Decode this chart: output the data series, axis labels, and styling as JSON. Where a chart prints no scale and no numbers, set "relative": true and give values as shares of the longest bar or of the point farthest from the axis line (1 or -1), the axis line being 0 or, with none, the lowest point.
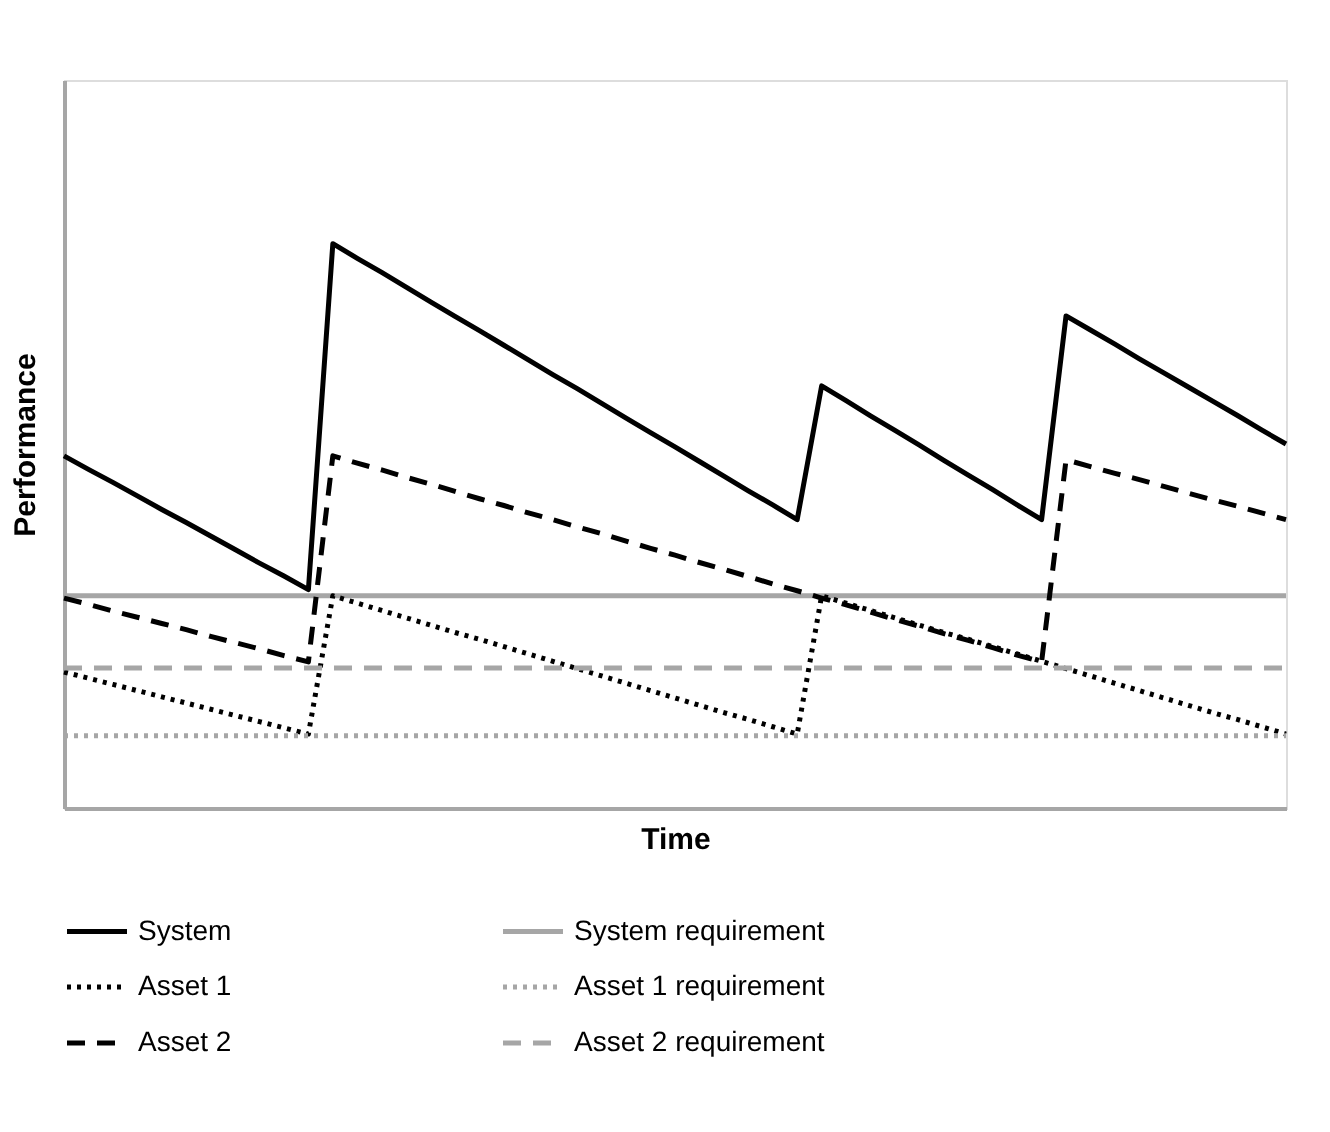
{
  "chart_data": {
    "type": "line",
    "relative": true,
    "xlabel": "Time",
    "ylabel": "Performance",
    "legend": "bottom",
    "tick_labels": false,
    "categories": [
      null,
      null,
      null,
      null,
      null,
      null,
      null,
      null,
      null,
      null,
      null,
      null,
      null,
      null,
      null,
      null,
      null,
      null,
      null,
      null,
      null,
      null,
      null,
      null,
      null,
      null,
      null,
      null,
      null,
      null,
      null,
      null,
      null,
      null,
      null,
      null,
      null,
      null,
      null,
      null,
      null,
      null,
      null,
      null,
      null,
      null,
      null,
      null,
      null,
      null,
      null
    ],
    "series": [
      {
        "name": "System",
        "color": "#000000",
        "line_style": "solid",
        "values": [
          0.624,
          0.6,
          0.577,
          0.553,
          0.529,
          0.506,
          0.482,
          0.458,
          0.434,
          0.411,
          0.387,
          1.0,
          0.974,
          0.949,
          0.923,
          0.897,
          0.871,
          0.846,
          0.82,
          0.794,
          0.768,
          0.743,
          0.717,
          0.691,
          0.665,
          0.64,
          0.614,
          0.588,
          0.562,
          0.537,
          0.511,
          0.748,
          0.722,
          0.695,
          0.669,
          0.643,
          0.616,
          0.59,
          0.564,
          0.537,
          0.511,
          0.872,
          0.847,
          0.822,
          0.796,
          0.771,
          0.746,
          0.721,
          0.696,
          0.67,
          0.645
        ]
      },
      {
        "name": "System requirement",
        "color": "#a6a6a6",
        "line_style": "solid",
        "values": [
          0.376,
          0.376,
          0.376,
          0.376,
          0.376,
          0.376,
          0.376,
          0.376,
          0.376,
          0.376,
          0.376,
          0.376,
          0.376,
          0.376,
          0.376,
          0.376,
          0.376,
          0.376,
          0.376,
          0.376,
          0.376,
          0.376,
          0.376,
          0.376,
          0.376,
          0.376,
          0.376,
          0.376,
          0.376,
          0.376,
          0.376,
          0.376,
          0.376,
          0.376,
          0.376,
          0.376,
          0.376,
          0.376,
          0.376,
          0.376,
          0.376,
          0.376,
          0.376,
          0.376,
          0.376,
          0.376,
          0.376,
          0.376,
          0.376,
          0.376,
          0.376
        ]
      },
      {
        "name": "Asset 1",
        "color": "#000000",
        "line_style": "dotted",
        "values": [
          0.241,
          0.23,
          0.219,
          0.208,
          0.197,
          0.186,
          0.175,
          0.164,
          0.153,
          0.142,
          0.131,
          0.376,
          0.363,
          0.35,
          0.337,
          0.324,
          0.311,
          0.299,
          0.286,
          0.273,
          0.26,
          0.247,
          0.234,
          0.221,
          0.208,
          0.195,
          0.182,
          0.169,
          0.157,
          0.144,
          0.131,
          0.376,
          0.363,
          0.35,
          0.337,
          0.324,
          0.311,
          0.299,
          0.286,
          0.273,
          0.26,
          0.247,
          0.234,
          0.221,
          0.208,
          0.195,
          0.182,
          0.169,
          0.157,
          0.144,
          0.131
        ]
      },
      {
        "name": "Asset 1 requirement",
        "color": "#a6a6a6",
        "line_style": "dotted",
        "values": [
          0.128,
          0.128,
          0.128,
          0.128,
          0.128,
          0.128,
          0.128,
          0.128,
          0.128,
          0.128,
          0.128,
          0.128,
          0.128,
          0.128,
          0.128,
          0.128,
          0.128,
          0.128,
          0.128,
          0.128,
          0.128,
          0.128,
          0.128,
          0.128,
          0.128,
          0.128,
          0.128,
          0.128,
          0.128,
          0.128,
          0.128,
          0.128,
          0.128,
          0.128,
          0.128,
          0.128,
          0.128,
          0.128,
          0.128,
          0.128,
          0.128,
          0.128,
          0.128,
          0.128,
          0.128,
          0.128,
          0.128,
          0.128,
          0.128,
          0.128,
          0.128
        ]
      },
      {
        "name": "Asset 2",
        "color": "#000000",
        "line_style": "dashed",
        "values": [
          0.372,
          0.361,
          0.349,
          0.338,
          0.327,
          0.316,
          0.304,
          0.293,
          0.282,
          0.27,
          0.259,
          0.624,
          0.611,
          0.599,
          0.586,
          0.574,
          0.561,
          0.548,
          0.536,
          0.523,
          0.511,
          0.498,
          0.486,
          0.473,
          0.46,
          0.448,
          0.435,
          0.423,
          0.41,
          0.397,
          0.385,
          0.372,
          0.36,
          0.347,
          0.334,
          0.322,
          0.309,
          0.297,
          0.284,
          0.271,
          0.259,
          0.617,
          0.605,
          0.593,
          0.582,
          0.57,
          0.558,
          0.546,
          0.535,
          0.523,
          0.511
        ]
      },
      {
        "name": "Asset 2 requirement",
        "color": "#a6a6a6",
        "line_style": "dashed",
        "values": [
          0.248,
          0.248,
          0.248,
          0.248,
          0.248,
          0.248,
          0.248,
          0.248,
          0.248,
          0.248,
          0.248,
          0.248,
          0.248,
          0.248,
          0.248,
          0.248,
          0.248,
          0.248,
          0.248,
          0.248,
          0.248,
          0.248,
          0.248,
          0.248,
          0.248,
          0.248,
          0.248,
          0.248,
          0.248,
          0.248,
          0.248,
          0.248,
          0.248,
          0.248,
          0.248,
          0.248,
          0.248,
          0.248,
          0.248,
          0.248,
          0.248,
          0.248,
          0.248,
          0.248,
          0.248,
          0.248,
          0.248,
          0.248,
          0.248,
          0.248,
          0.248
        ]
      }
    ]
  }
}
